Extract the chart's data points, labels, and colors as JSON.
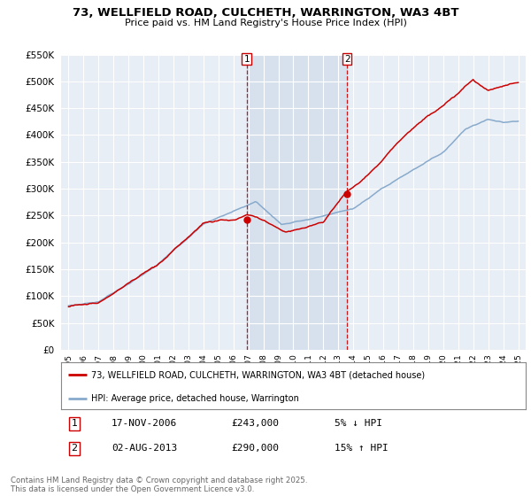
{
  "title": "73, WELLFIELD ROAD, CULCHETH, WARRINGTON, WA3 4BT",
  "subtitle": "Price paid vs. HM Land Registry's House Price Index (HPI)",
  "bg_color": "#ffffff",
  "plot_bg_color": "#e8eef5",
  "grid_color": "#ffffff",
  "shade_color": "#ccd9e8",
  "red_color": "#cc0000",
  "blue_color": "#88aacc",
  "marker1_date_x": 2006.88,
  "marker1_label": "1",
  "marker1_price": 243000,
  "marker2_date_x": 2013.58,
  "marker2_label": "2",
  "marker2_price": 290000,
  "legend1_text": "73, WELLFIELD ROAD, CULCHETH, WARRINGTON, WA3 4BT (detached house)",
  "legend2_text": "HPI: Average price, detached house, Warrington",
  "note1_label": "1",
  "note1_date": "17-NOV-2006",
  "note1_price": "£243,000",
  "note1_hpi": "5% ↓ HPI",
  "note2_label": "2",
  "note2_date": "02-AUG-2013",
  "note2_price": "£290,000",
  "note2_hpi": "15% ↑ HPI",
  "footer": "Contains HM Land Registry data © Crown copyright and database right 2025.\nThis data is licensed under the Open Government Licence v3.0.",
  "ylim": [
    0,
    550000
  ],
  "yticks": [
    0,
    50000,
    100000,
    150000,
    200000,
    250000,
    300000,
    350000,
    400000,
    450000,
    500000,
    550000
  ],
  "xlim_start": 1994.5,
  "xlim_end": 2025.5
}
